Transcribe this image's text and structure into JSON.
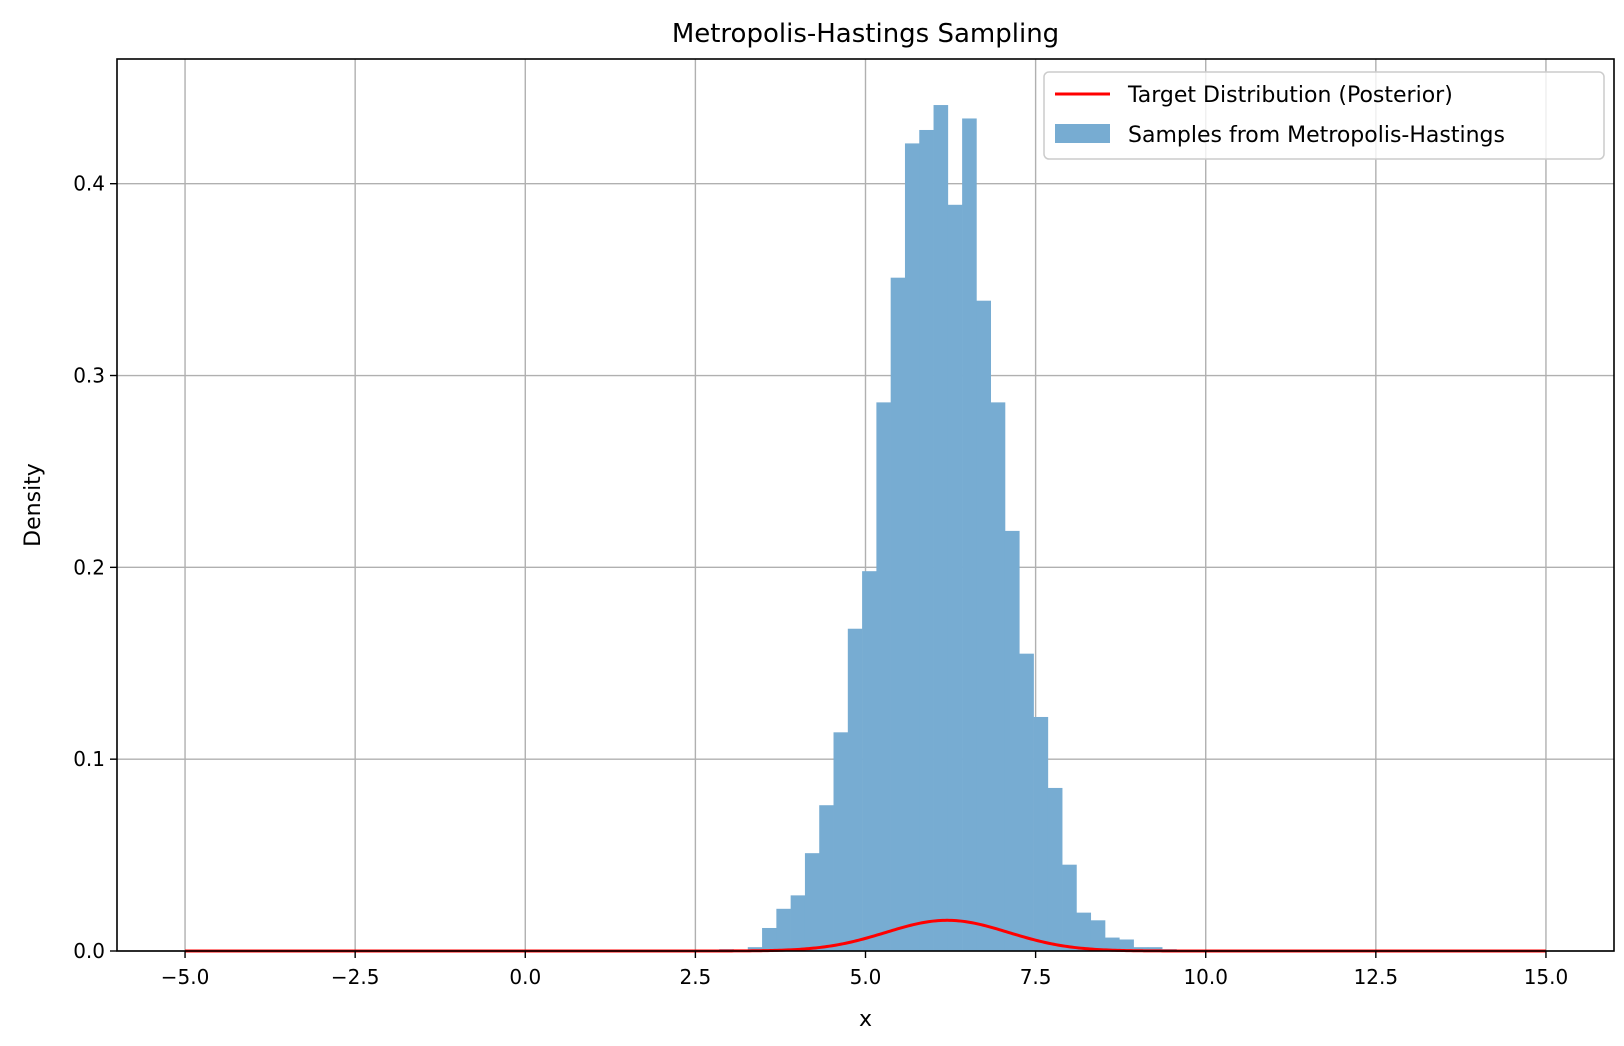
{
  "chart_data": {
    "type": "bar",
    "title": "Metropolis-Hastings Sampling",
    "xlabel": "x",
    "ylabel": "Density",
    "xlim": [
      -6,
      16
    ],
    "ylim": [
      0,
      0.465
    ],
    "xticks": [
      -5.0,
      -2.5,
      0.0,
      2.5,
      5.0,
      7.5,
      10.0,
      12.5,
      15.0
    ],
    "xtick_labels": [
      "−5.0",
      "−2.5",
      "0.0",
      "2.5",
      "5.0",
      "7.5",
      "10.0",
      "12.5",
      "15.0"
    ],
    "yticks": [
      0.0,
      0.1,
      0.2,
      0.3,
      0.4
    ],
    "ytick_labels": [
      "0.0",
      "0.1",
      "0.2",
      "0.3",
      "0.4"
    ],
    "grid": true,
    "legend_position": "top-right",
    "histogram": {
      "name": "Samples from Metropolis-Hastings",
      "color": "#77acd2",
      "bin_edges": [
        2.85,
        3.06,
        3.27,
        3.48,
        3.69,
        3.9,
        4.11,
        4.32,
        4.53,
        4.74,
        4.95,
        5.16,
        5.37,
        5.58,
        5.79,
        6.0,
        6.21,
        6.42,
        6.63,
        6.84,
        7.05,
        7.26,
        7.47,
        7.68,
        7.89,
        8.1,
        8.31,
        8.52,
        8.73,
        8.94,
        9.15,
        9.36,
        9.57,
        9.78
      ],
      "values": [
        0.001,
        0.0005,
        0.002,
        0.012,
        0.022,
        0.029,
        0.051,
        0.076,
        0.114,
        0.168,
        0.198,
        0.286,
        0.351,
        0.421,
        0.428,
        0.441,
        0.389,
        0.434,
        0.339,
        0.286,
        0.219,
        0.155,
        0.122,
        0.085,
        0.045,
        0.02,
        0.016,
        0.007,
        0.006,
        0.002,
        0.002,
        0.001,
        0.0005
      ]
    },
    "line": {
      "name": "Target Distribution (Posterior)",
      "color": "#ff0000",
      "distribution": "normal",
      "mean": 6.2,
      "std": 0.9,
      "scale": 0.016,
      "x_range": [
        -5,
        15
      ]
    }
  }
}
